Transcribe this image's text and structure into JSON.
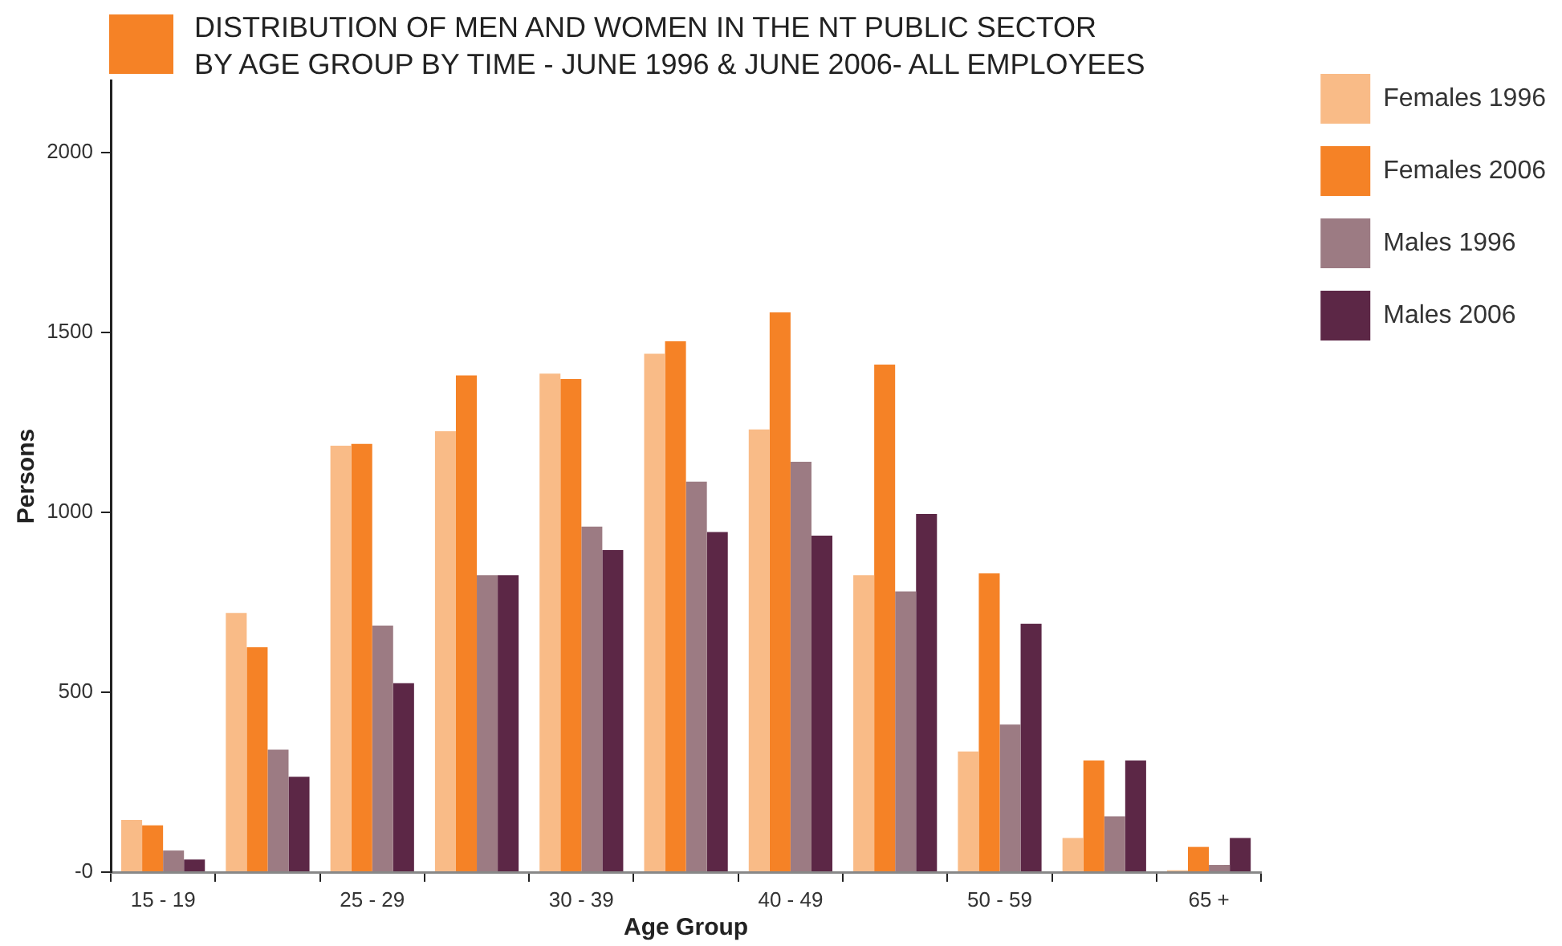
{
  "chart_data": {
    "type": "bar",
    "title": "DISTRIBUTION OF MEN AND WOMEN IN THE NT PUBLIC SECTOR\nBY AGE GROUP BY TIME - JUNE 1996 & JUNE 2006- ALL EMPLOYEES",
    "xlabel": "Age Group",
    "ylabel": "Persons",
    "categories": [
      "15 - 19",
      null,
      "25 - 29",
      null,
      "30 - 39",
      null,
      "40 - 49",
      null,
      "50 - 59",
      null,
      "65 +"
    ],
    "series": [
      {
        "name": "Females 1996",
        "color": "#f9bb87",
        "values": [
          145,
          720,
          1185,
          1225,
          1385,
          1440,
          1230,
          825,
          335,
          95,
          5
        ]
      },
      {
        "name": "Females 2006",
        "color": "#f58226",
        "values": [
          130,
          625,
          1190,
          1380,
          1370,
          1475,
          1555,
          1410,
          830,
          310,
          70
        ]
      },
      {
        "name": "Males 1996",
        "color": "#9c7b83",
        "values": [
          60,
          340,
          685,
          825,
          960,
          1085,
          1140,
          780,
          410,
          155,
          20
        ]
      },
      {
        "name": "Males 2006",
        "color": "#5c2746",
        "values": [
          35,
          265,
          525,
          825,
          895,
          945,
          935,
          995,
          690,
          310,
          95
        ]
      }
    ],
    "ylim": [
      0,
      2200
    ],
    "yticks": [
      {
        "value": 0,
        "label": "-0"
      },
      500,
      1000,
      1500,
      2000
    ],
    "legend": "top right"
  }
}
